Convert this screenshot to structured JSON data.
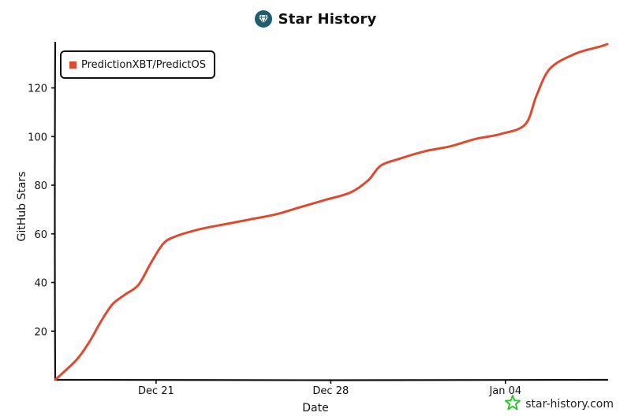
{
  "header": {
    "title": "Star History"
  },
  "watermark": {
    "text": "star-history.com"
  },
  "colors": {
    "series": "#dd4a2f",
    "logo_bg": "#1f5d6b",
    "watermark_star": "#2ec52e",
    "axis": "#111111"
  },
  "icons": {
    "title_logo": "star-history-logo-icon",
    "watermark_logo": "green-star-icon"
  },
  "chart_data": {
    "type": "line",
    "title": "Star History",
    "xlabel": "Date",
    "ylabel": "GitHub Stars",
    "x_is_date": true,
    "xlim": [
      "2024-12-16T23:00",
      "2025-01-08T02:00"
    ],
    "ylim": [
      0,
      138
    ],
    "x_ticks": [
      {
        "date": "2024-12-21",
        "label": "Dec 21"
      },
      {
        "date": "2024-12-28",
        "label": "Dec 28"
      },
      {
        "date": "2025-01-04",
        "label": "Jan 04"
      }
    ],
    "y_ticks": [
      20,
      40,
      60,
      80,
      100,
      120
    ],
    "grid": false,
    "legend_position": "top-left",
    "series": [
      {
        "name": "PredictionXBT/PredictOS",
        "color": "#dd4a2f",
        "points": [
          [
            "2024-12-16T23:00",
            0
          ],
          [
            "2024-12-17T19:00",
            8
          ],
          [
            "2024-12-18T07:00",
            15
          ],
          [
            "2024-12-18T19:00",
            24
          ],
          [
            "2024-12-19T06:00",
            31
          ],
          [
            "2024-12-19T18:00",
            35
          ],
          [
            "2024-12-20T07:00",
            39
          ],
          [
            "2024-12-20T19:00",
            48
          ],
          [
            "2024-12-21T07:00",
            56
          ],
          [
            "2024-12-21T19:00",
            59
          ],
          [
            "2024-12-22T19:00",
            62
          ],
          [
            "2024-12-23T19:00",
            64
          ],
          [
            "2024-12-24T19:00",
            66
          ],
          [
            "2024-12-25T19:00",
            68
          ],
          [
            "2024-12-26T19:00",
            71
          ],
          [
            "2024-12-27T19:00",
            74
          ],
          [
            "2024-12-28T19:00",
            77
          ],
          [
            "2024-12-29T12:00",
            82
          ],
          [
            "2024-12-30T00:00",
            88
          ],
          [
            "2024-12-30T19:00",
            91
          ],
          [
            "2024-12-31T19:00",
            94
          ],
          [
            "2025-01-01T19:00",
            96
          ],
          [
            "2025-01-02T19:00",
            99
          ],
          [
            "2025-01-03T19:00",
            101
          ],
          [
            "2025-01-04T19:00",
            105
          ],
          [
            "2025-01-05T06:00",
            117
          ],
          [
            "2025-01-05T19:00",
            128
          ],
          [
            "2025-01-06T19:00",
            134
          ],
          [
            "2025-01-07T19:00",
            137
          ],
          [
            "2025-01-08T02:00",
            138
          ]
        ]
      }
    ]
  }
}
